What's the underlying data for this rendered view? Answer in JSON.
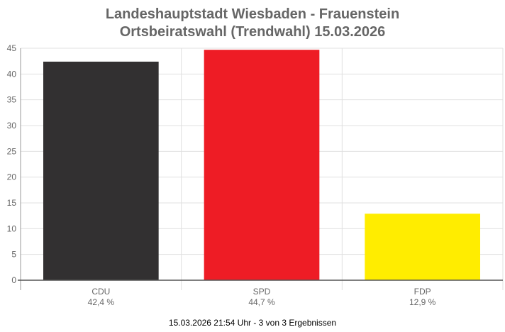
{
  "chart_data": {
    "type": "bar",
    "title": "Landeshauptstadt Wiesbaden - Frauenstein",
    "subtitle": "Ortsbeiratswahl (Trendwahl) 15.03.2026",
    "categories": [
      "CDU",
      "SPD",
      "FDP"
    ],
    "value_labels": [
      "42,4 %",
      "44,7 %",
      "12,9 %"
    ],
    "values": [
      42.4,
      44.7,
      12.9
    ],
    "colors": [
      "#323031",
      "#ee1c25",
      "#ffed00"
    ],
    "ylim": [
      0,
      45
    ],
    "yticks": [
      0,
      5,
      10,
      15,
      20,
      25,
      30,
      35,
      40,
      45
    ],
    "grid": true,
    "xlabel": "",
    "ylabel": ""
  },
  "footer": "15.03.2026 21:54 Uhr - 3 von 3 Ergebnissen"
}
